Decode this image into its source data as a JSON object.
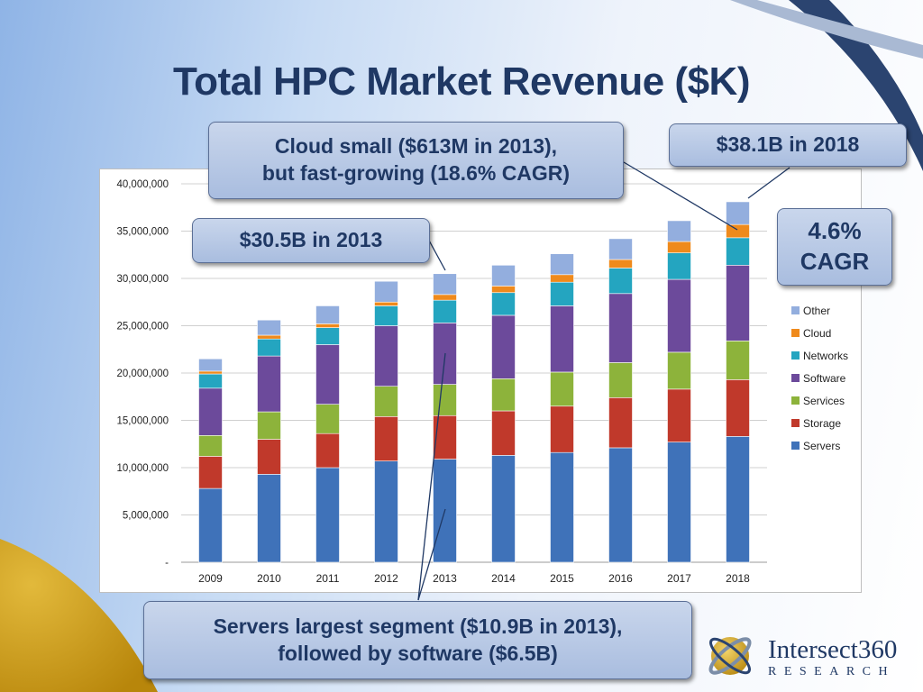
{
  "slide": {
    "title": "Total HPC Market Revenue ($K)",
    "callouts": {
      "cloud_line1": "Cloud small ($613M in 2013),",
      "cloud_line2": "but fast-growing (18.6% CAGR)",
      "total_2018": "$38.1B in 2018",
      "total_2013": "$30.5B in 2013",
      "cagr_line1": "4.6%",
      "cagr_line2": "CAGR",
      "servers_line1": "Servers largest segment ($10.9B in 2013),",
      "servers_line2": "followed by software ($6.5B)"
    },
    "logo": {
      "name": "Intersect360",
      "sub": "RESEARCH"
    }
  },
  "chart_data": {
    "type": "bar",
    "stacked": true,
    "categories": [
      "2009",
      "2010",
      "2011",
      "2012",
      "2013",
      "2014",
      "2015",
      "2016",
      "2017",
      "2018"
    ],
    "series": [
      {
        "name": "Servers",
        "color": "#3f72b9",
        "values": [
          7800000,
          9300000,
          10000000,
          10700000,
          10900000,
          11300000,
          11600000,
          12100000,
          12700000,
          13300000
        ]
      },
      {
        "name": "Storage",
        "color": "#c0392b",
        "values": [
          3400000,
          3700000,
          3600000,
          4700000,
          4600000,
          4700000,
          4900000,
          5300000,
          5600000,
          6000000
        ]
      },
      {
        "name": "Services",
        "color": "#8db33b",
        "values": [
          2200000,
          2900000,
          3100000,
          3200000,
          3300000,
          3400000,
          3600000,
          3700000,
          3900000,
          4100000
        ]
      },
      {
        "name": "Software",
        "color": "#6c4a9b",
        "values": [
          5000000,
          5900000,
          6300000,
          6400000,
          6500000,
          6700000,
          7000000,
          7300000,
          7700000,
          8000000
        ]
      },
      {
        "name": "Networks",
        "color": "#24a5c0",
        "values": [
          1500000,
          1800000,
          1800000,
          2100000,
          2400000,
          2400000,
          2500000,
          2700000,
          2800000,
          2900000
        ]
      },
      {
        "name": "Cloud",
        "color": "#ef8a1c",
        "values": [
          300000,
          400000,
          400000,
          400000,
          600000,
          700000,
          800000,
          900000,
          1200000,
          1400000
        ]
      },
      {
        "name": "Other",
        "color": "#93aede",
        "values": [
          1300000,
          1600000,
          1900000,
          2200000,
          2200000,
          2200000,
          2200000,
          2200000,
          2200000,
          2400000
        ]
      }
    ],
    "y_ticks": [
      "-",
      "5,000,000",
      "10,000,000",
      "15,000,000",
      "20,000,000",
      "25,000,000",
      "30,000,000",
      "35,000,000",
      "40,000,000"
    ],
    "ylim": [
      0,
      40000000
    ],
    "grid": true,
    "legend_position": "right",
    "legend_order": [
      "Other",
      "Cloud",
      "Networks",
      "Software",
      "Services",
      "Storage",
      "Servers"
    ]
  }
}
